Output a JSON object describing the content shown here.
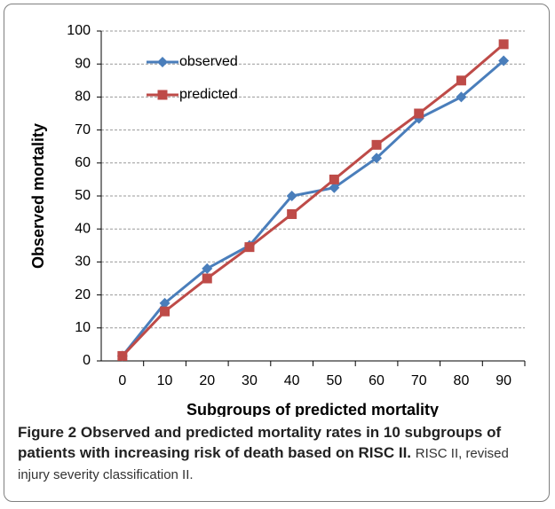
{
  "chart_data": {
    "type": "line",
    "x_label": "Subgroups of predicted mortality",
    "y_label": "Observed mortality",
    "categories": [
      "0",
      "10",
      "20",
      "30",
      "40",
      "50",
      "60",
      "70",
      "80",
      "90"
    ],
    "series": [
      {
        "name": "observed",
        "color": "#4a7ebb",
        "marker": "diamond",
        "values": [
          1.5,
          17.5,
          28,
          35,
          50,
          52.5,
          61.5,
          73.5,
          80,
          91
        ]
      },
      {
        "name": "predicted",
        "color": "#be4b48",
        "marker": "square",
        "values": [
          1.5,
          15,
          25,
          34.5,
          44.5,
          55,
          65.5,
          75,
          85,
          96
        ]
      }
    ],
    "ylim": [
      0,
      100
    ],
    "yticks": [
      0,
      10,
      20,
      30,
      40,
      50,
      60,
      70,
      80,
      90,
      100
    ],
    "grid": true,
    "legend": "upper left"
  },
  "figure_caption": {
    "label": "Figure 2 Observed and predicted mortality rates in 10 subgroups of patients with increasing risk of death based on RISC II.",
    "text": "RISC II, revised injury severity classification II."
  }
}
